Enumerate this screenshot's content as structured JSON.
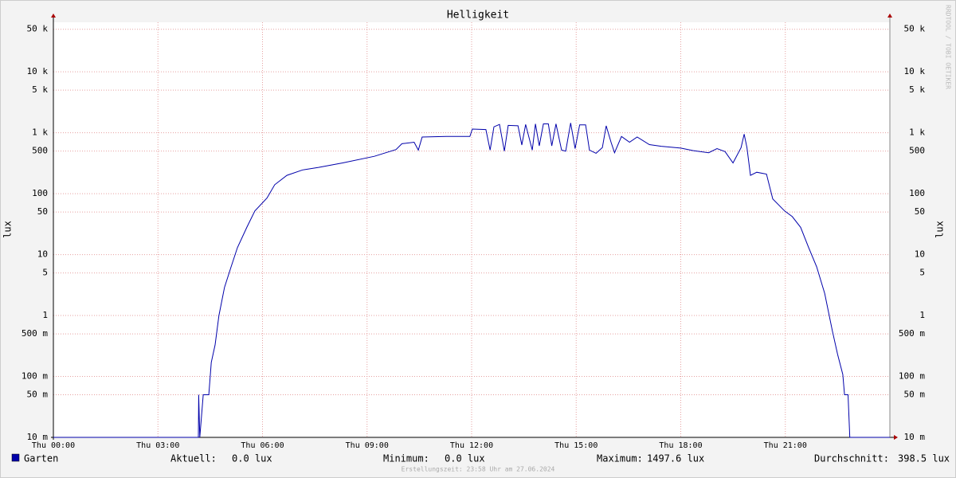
{
  "chart_data": {
    "type": "line",
    "title": "Helligkeit",
    "y_label": "lux",
    "log_scale": true,
    "grid": true,
    "xlim": [
      0,
      24
    ],
    "xticks": [
      {
        "value": 0,
        "label": "Thu 00:00"
      },
      {
        "value": 3,
        "label": "Thu 03:00"
      },
      {
        "value": 6,
        "label": "Thu 06:00"
      },
      {
        "value": 9,
        "label": "Thu 09:00"
      },
      {
        "value": 12,
        "label": "Thu 12:00"
      },
      {
        "value": 15,
        "label": "Thu 15:00"
      },
      {
        "value": 18,
        "label": "Thu 18:00"
      },
      {
        "value": 21,
        "label": "Thu 21:00"
      }
    ],
    "ylim": [
      0.01,
      65000
    ],
    "yticks": [
      {
        "value": 0.01,
        "label": "10 m"
      },
      {
        "value": 0.05,
        "label": "50 m"
      },
      {
        "value": 0.1,
        "label": "100 m"
      },
      {
        "value": 0.5,
        "label": "500 m"
      },
      1,
      5,
      10,
      50,
      100,
      500,
      {
        "value": 1000,
        "label": "1 k"
      },
      {
        "value": 5000,
        "label": "5 k"
      },
      {
        "value": 10000,
        "label": "10 k"
      },
      {
        "value": 50000,
        "label": "50 k"
      }
    ],
    "x": [
      0,
      4.16,
      4.17,
      4.2,
      4.3,
      4.46,
      4.53,
      4.64,
      4.75,
      4.91,
      5.1,
      5.28,
      5.55,
      5.78,
      6.13,
      6.35,
      6.7,
      7.15,
      7.61,
      8.3,
      9.21,
      9.83,
      10.0,
      10.35,
      10.47,
      10.58,
      11.27,
      11.95,
      12.02,
      12.41,
      12.53,
      12.64,
      12.8,
      12.94,
      13.05,
      13.33,
      13.44,
      13.55,
      13.74,
      13.83,
      13.94,
      14.06,
      14.2,
      14.3,
      14.42,
      14.58,
      14.7,
      14.84,
      14.97,
      15.1,
      15.27,
      15.38,
      15.57,
      15.75,
      15.86,
      16.0,
      16.1,
      16.3,
      16.53,
      16.75,
      17.1,
      17.44,
      18.0,
      18.35,
      18.8,
      19.04,
      19.27,
      19.5,
      19.73,
      19.82,
      19.9,
      20.0,
      20.18,
      20.46,
      20.64,
      20.98,
      21.2,
      21.44,
      21.67,
      21.9,
      22.13,
      22.35,
      22.5,
      22.65,
      22.7,
      22.8,
      22.85,
      24
    ],
    "series": [
      {
        "name": "Garten",
        "color": "#0000aa",
        "values": [
          0,
          0,
          0.05,
          0,
          0.05,
          0.05,
          0.17,
          0.33,
          1.0,
          2.9,
          6.3,
          13,
          28,
          52,
          85,
          140,
          200,
          245,
          270,
          320,
          410,
          530,
          660,
          700,
          520,
          850,
          870,
          870,
          1150,
          1130,
          520,
          1250,
          1370,
          500,
          1320,
          1300,
          630,
          1370,
          520,
          1400,
          610,
          1400,
          1400,
          610,
          1400,
          520,
          500,
          1450,
          550,
          1350,
          1350,
          520,
          460,
          570,
          1300,
          700,
          470,
          870,
          700,
          850,
          640,
          600,
          560,
          510,
          470,
          550,
          490,
          320,
          570,
          950,
          570,
          200,
          225,
          210,
          82,
          52,
          42,
          28,
          13,
          6.3,
          2.3,
          0.56,
          0.23,
          0.108,
          0.05,
          0.05,
          0,
          0
        ]
      }
    ],
    "legend_stats": [
      {
        "label": "Aktuell:",
        "value": "0.0 lux"
      },
      {
        "label": "Minimum:",
        "value": "0.0 lux"
      },
      {
        "label": "Maximum:",
        "value": "1497.6 lux"
      },
      {
        "label": "Durchschnitt:",
        "value": "398.5 lux"
      }
    ],
    "footer": "Erstellungszeit: 23:58 Uhr am 27.06.2024",
    "watermark": "RRDTOOL / TOBI OETIKER"
  }
}
